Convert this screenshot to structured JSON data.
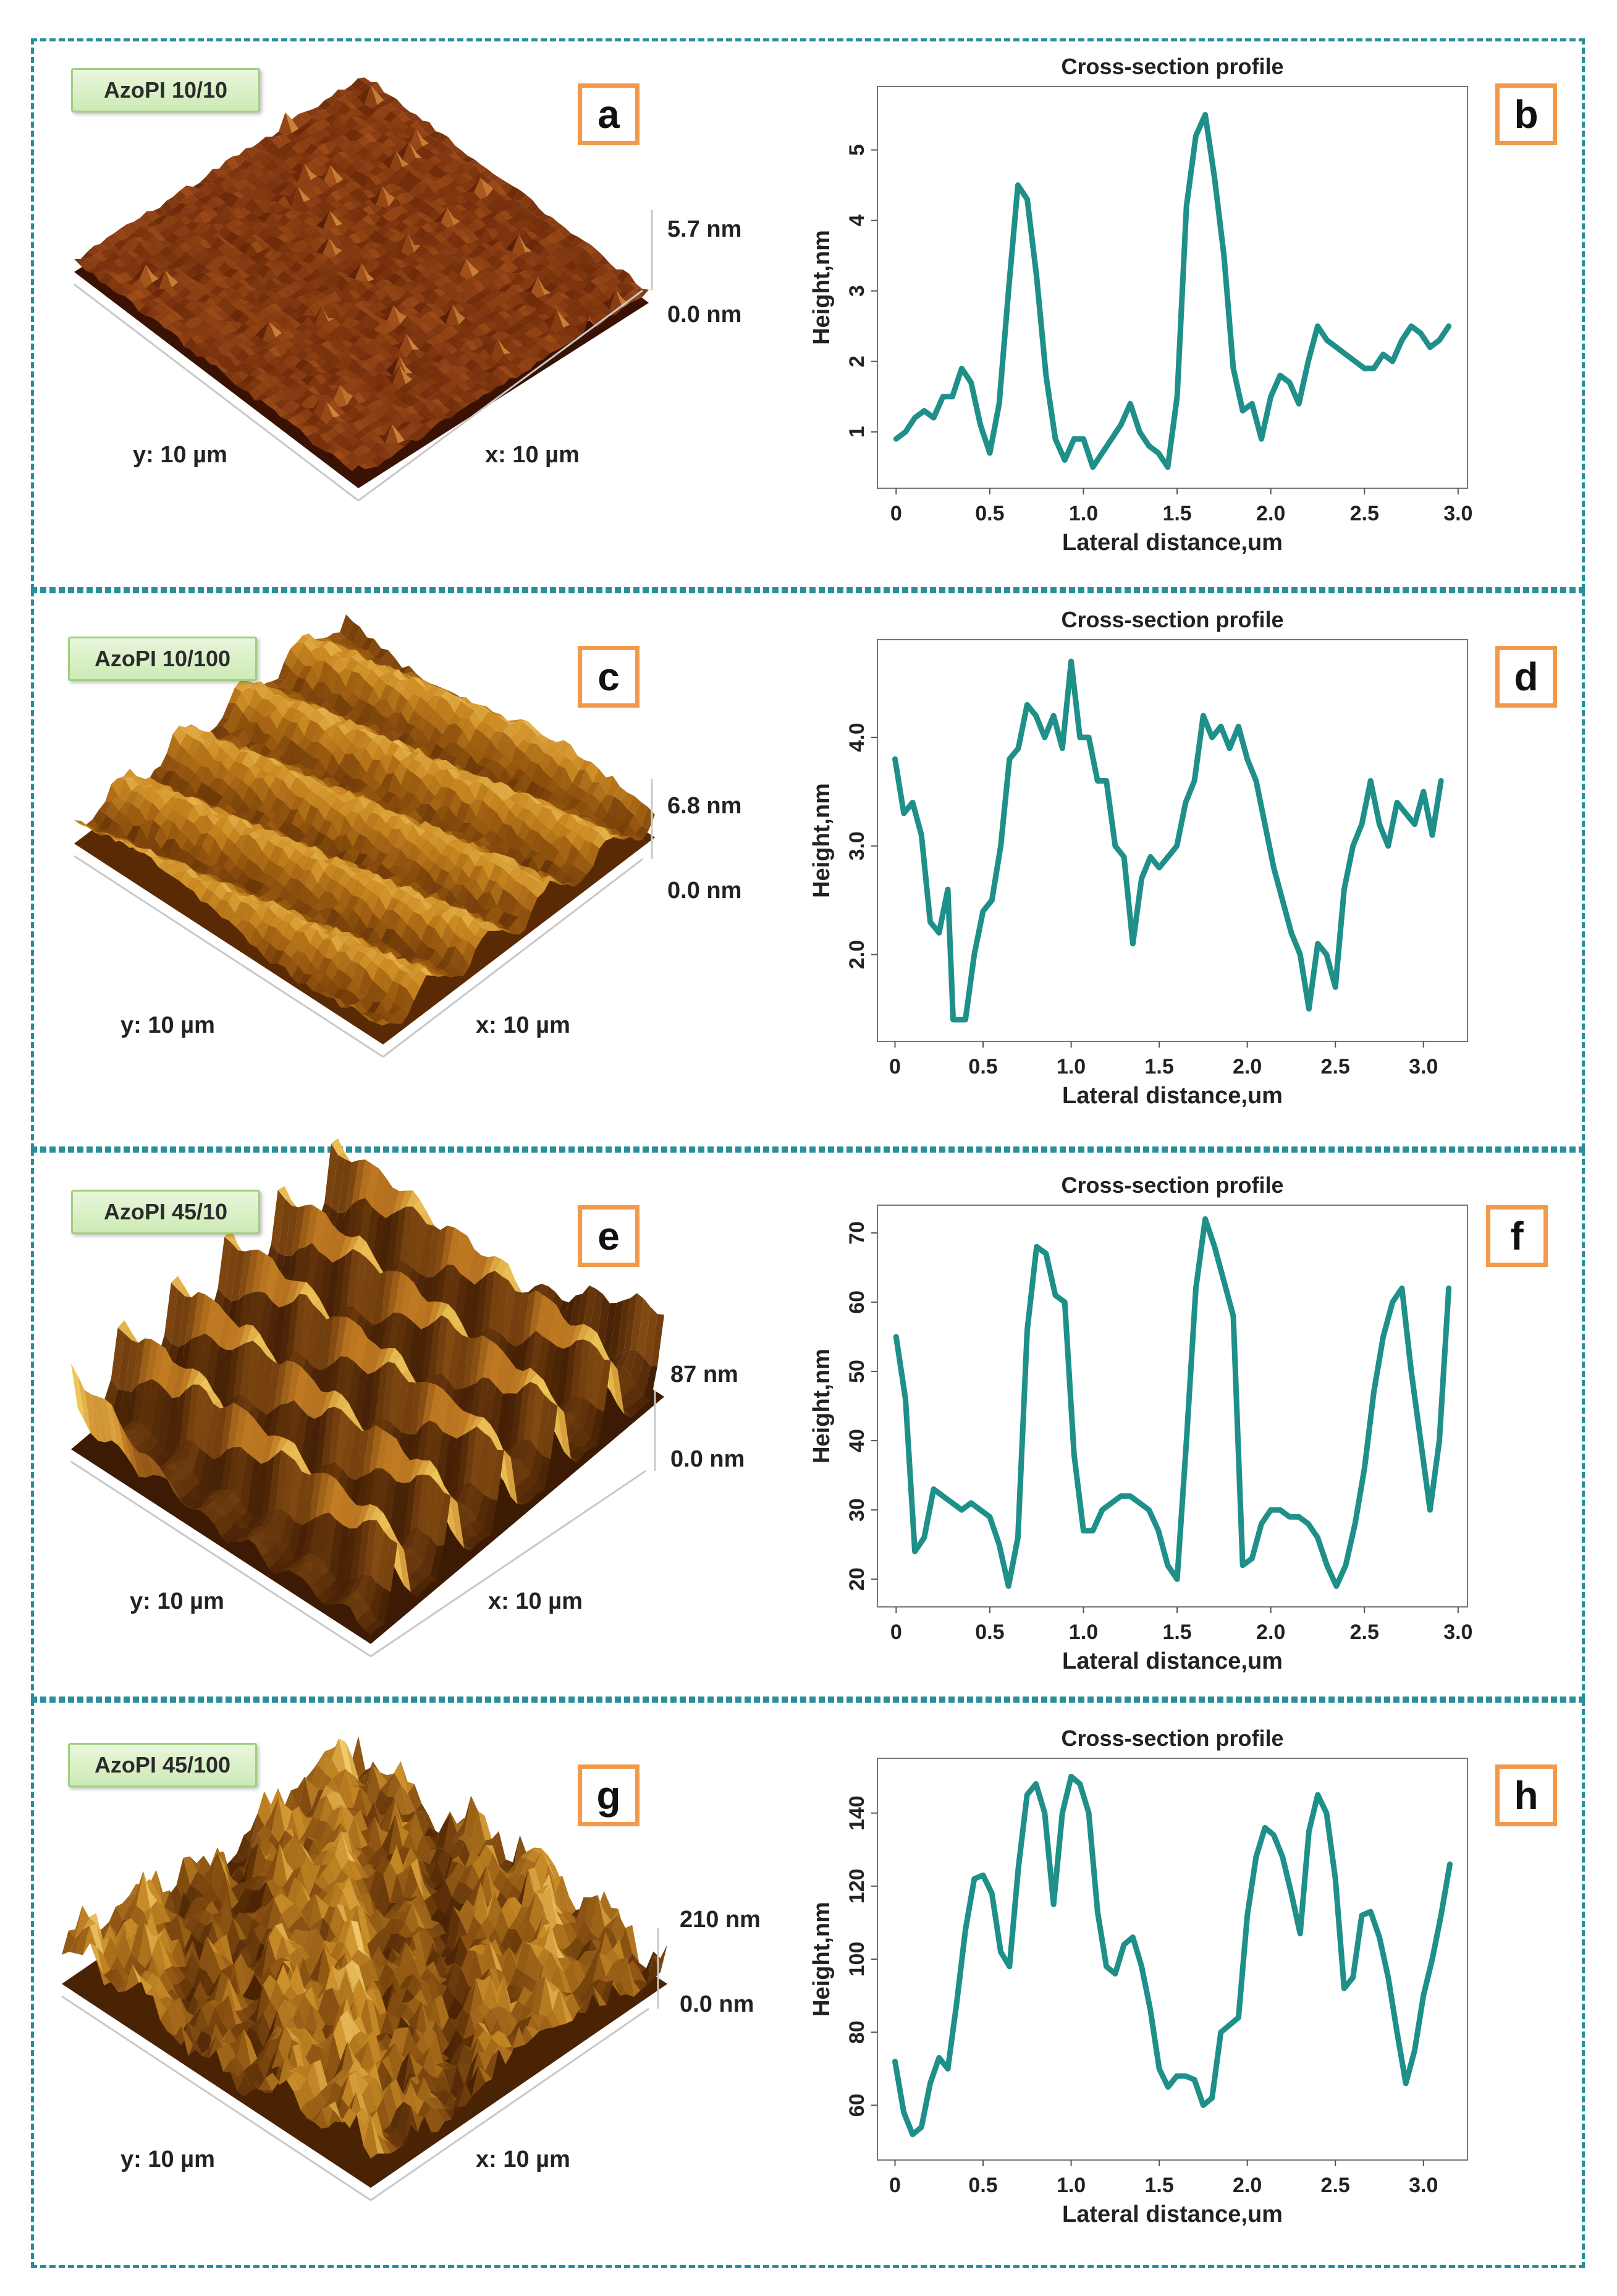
{
  "colors": {
    "profile_line": "#1f8f89",
    "frame": "#2a8f9a",
    "letter_border": "#f29a4a"
  },
  "afm_images": [
    {
      "sample_label": "AzoPI 10/10",
      "z_max": "5.7 nm",
      "z_min": "0.0 nm",
      "x_label": "x: 10 µm",
      "y_label": "y: 10 µm",
      "colormap": [
        "#3a1204",
        "#6e2a0a",
        "#a24f1a",
        "#d08a3c"
      ]
    },
    {
      "sample_label": "AzoPI 10/100",
      "z_max": "6.8 nm",
      "z_min": "0.0 nm",
      "x_label": "x: 10 µm",
      "y_label": "y: 10 µm",
      "colormap": [
        "#5a2a05",
        "#9a5a10",
        "#cc8a22",
        "#f0c25a"
      ]
    },
    {
      "sample_label": "AzoPI 45/10",
      "z_max": "87 nm",
      "z_min": "0.0 nm",
      "x_label": "x: 10 µm",
      "y_label": "y: 10 µm",
      "colormap": [
        "#3c1a03",
        "#7a4410",
        "#c07a22",
        "#f2c95c"
      ]
    },
    {
      "sample_label": "AzoPI 45/100",
      "z_max": "210 nm",
      "z_min": "0.0 nm",
      "x_label": "x: 10 µm",
      "y_label": "y: 10 µm",
      "colormap": [
        "#4a2204",
        "#8a5212",
        "#c88a26",
        "#f4d070"
      ]
    }
  ],
  "panel_letters": [
    "a",
    "b",
    "c",
    "d",
    "e",
    "f",
    "g",
    "h"
  ],
  "chart_data": [
    {
      "type": "line",
      "panel": "b",
      "title": "Cross-section profile",
      "xlabel": "Lateral distance,um",
      "ylabel": "Height,nm",
      "xlim": [
        -0.1,
        3.05
      ],
      "ylim": [
        0.2,
        5.9
      ],
      "xticks": [
        0,
        0.5,
        1.0,
        1.5,
        2.0,
        2.5,
        3.0
      ],
      "xtick_labels": [
        "0",
        "0.5",
        "1.0",
        "1.5",
        "2.0",
        "2.5",
        "3.0"
      ],
      "yticks": [
        1,
        2,
        3,
        4,
        5
      ],
      "ytick_labels": [
        "1",
        "2",
        "3",
        "4",
        "5"
      ],
      "series": [
        {
          "x": [
            0,
            0.05,
            0.1,
            0.15,
            0.2,
            0.25,
            0.3,
            0.35,
            0.4,
            0.45,
            0.5,
            0.55,
            0.6,
            0.65,
            0.7,
            0.75,
            0.8,
            0.85,
            0.9,
            0.95,
            1.0,
            1.05,
            1.1,
            1.15,
            1.2,
            1.25,
            1.3,
            1.35,
            1.4,
            1.45,
            1.5,
            1.55,
            1.6,
            1.65,
            1.7,
            1.75,
            1.8,
            1.85,
            1.9,
            1.95,
            2.0,
            2.05,
            2.1,
            2.15,
            2.2,
            2.25,
            2.3,
            2.35,
            2.4,
            2.45,
            2.5,
            2.55,
            2.6,
            2.65,
            2.7,
            2.75,
            2.8,
            2.85,
            2.9,
            2.95
          ],
          "y": [
            0.9,
            1.0,
            1.2,
            1.3,
            1.2,
            1.5,
            1.5,
            1.9,
            1.7,
            1.1,
            0.7,
            1.4,
            3.0,
            4.5,
            4.3,
            3.2,
            1.8,
            0.9,
            0.6,
            0.9,
            0.9,
            0.5,
            0.7,
            0.9,
            1.1,
            1.4,
            1.0,
            0.8,
            0.7,
            0.5,
            1.5,
            4.2,
            5.2,
            5.5,
            4.6,
            3.5,
            1.9,
            1.3,
            1.4,
            0.9,
            1.5,
            1.8,
            1.7,
            1.4,
            2.0,
            2.5,
            2.3,
            2.2,
            2.1,
            2.0,
            1.9,
            1.9,
            2.1,
            2.0,
            2.3,
            2.5,
            2.4,
            2.2,
            2.3,
            2.5
          ]
        }
      ]
    },
    {
      "type": "line",
      "panel": "d",
      "title": "Cross-section profile",
      "xlabel": "Lateral distance,um",
      "ylabel": "Height,nm",
      "xlim": [
        -0.1,
        3.25
      ],
      "ylim": [
        1.2,
        4.9
      ],
      "xticks": [
        0,
        0.5,
        1.0,
        1.5,
        2.0,
        2.5,
        3.0
      ],
      "xtick_labels": [
        "0",
        "0.5",
        "1.0",
        "1.5",
        "2.0",
        "2.5",
        "3.0"
      ],
      "yticks": [
        2.0,
        3.0,
        4.0
      ],
      "ytick_labels": [
        "2.0",
        "3.0",
        "4.0"
      ],
      "series": [
        {
          "x": [
            0,
            0.05,
            0.1,
            0.15,
            0.2,
            0.25,
            0.3,
            0.33,
            0.36,
            0.4,
            0.45,
            0.5,
            0.55,
            0.6,
            0.65,
            0.7,
            0.75,
            0.8,
            0.85,
            0.9,
            0.95,
            1.0,
            1.05,
            1.1,
            1.15,
            1.2,
            1.25,
            1.3,
            1.35,
            1.4,
            1.45,
            1.5,
            1.55,
            1.6,
            1.65,
            1.7,
            1.75,
            1.8,
            1.85,
            1.9,
            1.95,
            2.0,
            2.05,
            2.1,
            2.15,
            2.2,
            2.25,
            2.3,
            2.35,
            2.4,
            2.45,
            2.5,
            2.55,
            2.6,
            2.65,
            2.7,
            2.75,
            2.8,
            2.85,
            2.9,
            2.95,
            3.0,
            3.05,
            3.1
          ],
          "y": [
            3.8,
            3.3,
            3.4,
            3.1,
            2.3,
            2.2,
            2.6,
            1.4,
            1.4,
            1.4,
            2.0,
            2.4,
            2.5,
            3.0,
            3.8,
            3.9,
            4.3,
            4.2,
            4.0,
            4.2,
            3.9,
            4.7,
            4.0,
            4.0,
            3.6,
            3.6,
            3.0,
            2.9,
            2.1,
            2.7,
            2.9,
            2.8,
            2.9,
            3.0,
            3.4,
            3.6,
            4.2,
            4.0,
            4.1,
            3.9,
            4.1,
            3.8,
            3.6,
            3.2,
            2.8,
            2.5,
            2.2,
            2.0,
            1.5,
            2.1,
            2.0,
            1.7,
            2.6,
            3.0,
            3.2,
            3.6,
            3.2,
            3.0,
            3.4,
            3.3,
            3.2,
            3.5,
            3.1,
            3.6
          ]
        }
      ]
    },
    {
      "type": "line",
      "panel": "f",
      "title": "Cross-section profile",
      "xlabel": "Lateral distance,um",
      "ylabel": "Height,nm",
      "xlim": [
        -0.1,
        3.05
      ],
      "ylim": [
        16,
        74
      ],
      "xticks": [
        0,
        0.5,
        1.0,
        1.5,
        2.0,
        2.5,
        3.0
      ],
      "xtick_labels": [
        "0",
        "0.5",
        "1.0",
        "1.5",
        "2.0",
        "2.5",
        "3.0"
      ],
      "yticks": [
        20,
        30,
        40,
        50,
        60,
        70
      ],
      "ytick_labels": [
        "20",
        "30",
        "40",
        "50",
        "60",
        "70"
      ],
      "series": [
        {
          "x": [
            0,
            0.05,
            0.1,
            0.15,
            0.2,
            0.25,
            0.3,
            0.35,
            0.4,
            0.45,
            0.5,
            0.55,
            0.6,
            0.65,
            0.7,
            0.75,
            0.8,
            0.85,
            0.9,
            0.95,
            1.0,
            1.05,
            1.1,
            1.15,
            1.2,
            1.25,
            1.3,
            1.35,
            1.4,
            1.45,
            1.5,
            1.55,
            1.6,
            1.65,
            1.7,
            1.75,
            1.8,
            1.85,
            1.9,
            1.95,
            2.0,
            2.05,
            2.1,
            2.15,
            2.2,
            2.25,
            2.3,
            2.35,
            2.4,
            2.45,
            2.5,
            2.55,
            2.6,
            2.65,
            2.7,
            2.75,
            2.8,
            2.85,
            2.9,
            2.95
          ],
          "y": [
            55,
            46,
            24,
            26,
            33,
            32,
            31,
            30,
            31,
            30,
            29,
            25,
            19,
            26,
            56,
            68,
            67,
            61,
            60,
            38,
            27,
            27,
            30,
            31,
            32,
            32,
            31,
            30,
            27,
            22,
            20,
            40,
            62,
            72,
            68,
            63,
            58,
            22,
            23,
            28,
            30,
            30,
            29,
            29,
            28,
            26,
            22,
            19,
            22,
            28,
            36,
            47,
            55,
            60,
            62,
            50,
            40,
            30,
            40,
            62
          ]
        }
      ]
    },
    {
      "type": "line",
      "panel": "h",
      "title": "Cross-section profile",
      "xlabel": "Lateral distance,um",
      "ylabel": "Height,nm",
      "xlim": [
        -0.1,
        3.25
      ],
      "ylim": [
        45,
        155
      ],
      "xticks": [
        0,
        0.5,
        1.0,
        1.5,
        2.0,
        2.5,
        3.0
      ],
      "xtick_labels": [
        "0",
        "0.5",
        "1.0",
        "1.5",
        "2.0",
        "2.5",
        "3.0"
      ],
      "yticks": [
        60,
        80,
        100,
        120,
        140
      ],
      "ytick_labels": [
        "60",
        "80",
        "100",
        "120",
        "140"
      ],
      "series": [
        {
          "x": [
            0,
            0.05,
            0.1,
            0.15,
            0.2,
            0.25,
            0.3,
            0.35,
            0.4,
            0.45,
            0.5,
            0.55,
            0.6,
            0.65,
            0.7,
            0.75,
            0.8,
            0.85,
            0.9,
            0.95,
            1.0,
            1.05,
            1.1,
            1.15,
            1.2,
            1.25,
            1.3,
            1.35,
            1.4,
            1.45,
            1.5,
            1.55,
            1.6,
            1.65,
            1.7,
            1.75,
            1.8,
            1.85,
            1.9,
            1.95,
            2.0,
            2.05,
            2.1,
            2.15,
            2.2,
            2.25,
            2.3,
            2.35,
            2.4,
            2.45,
            2.5,
            2.55,
            2.6,
            2.65,
            2.7,
            2.75,
            2.8,
            2.85,
            2.9,
            2.95,
            3.0,
            3.05,
            3.1,
            3.15
          ],
          "y": [
            72,
            58,
            52,
            54,
            66,
            73,
            70,
            88,
            108,
            122,
            123,
            118,
            102,
            98,
            125,
            145,
            148,
            140,
            115,
            140,
            150,
            148,
            140,
            113,
            98,
            96,
            104,
            106,
            98,
            86,
            70,
            65,
            68,
            68,
            67,
            60,
            62,
            80,
            82,
            84,
            112,
            128,
            136,
            134,
            128,
            118,
            107,
            135,
            145,
            140,
            122,
            92,
            95,
            112,
            113,
            106,
            95,
            80,
            66,
            75,
            90,
            100,
            112,
            126
          ]
        }
      ]
    }
  ]
}
